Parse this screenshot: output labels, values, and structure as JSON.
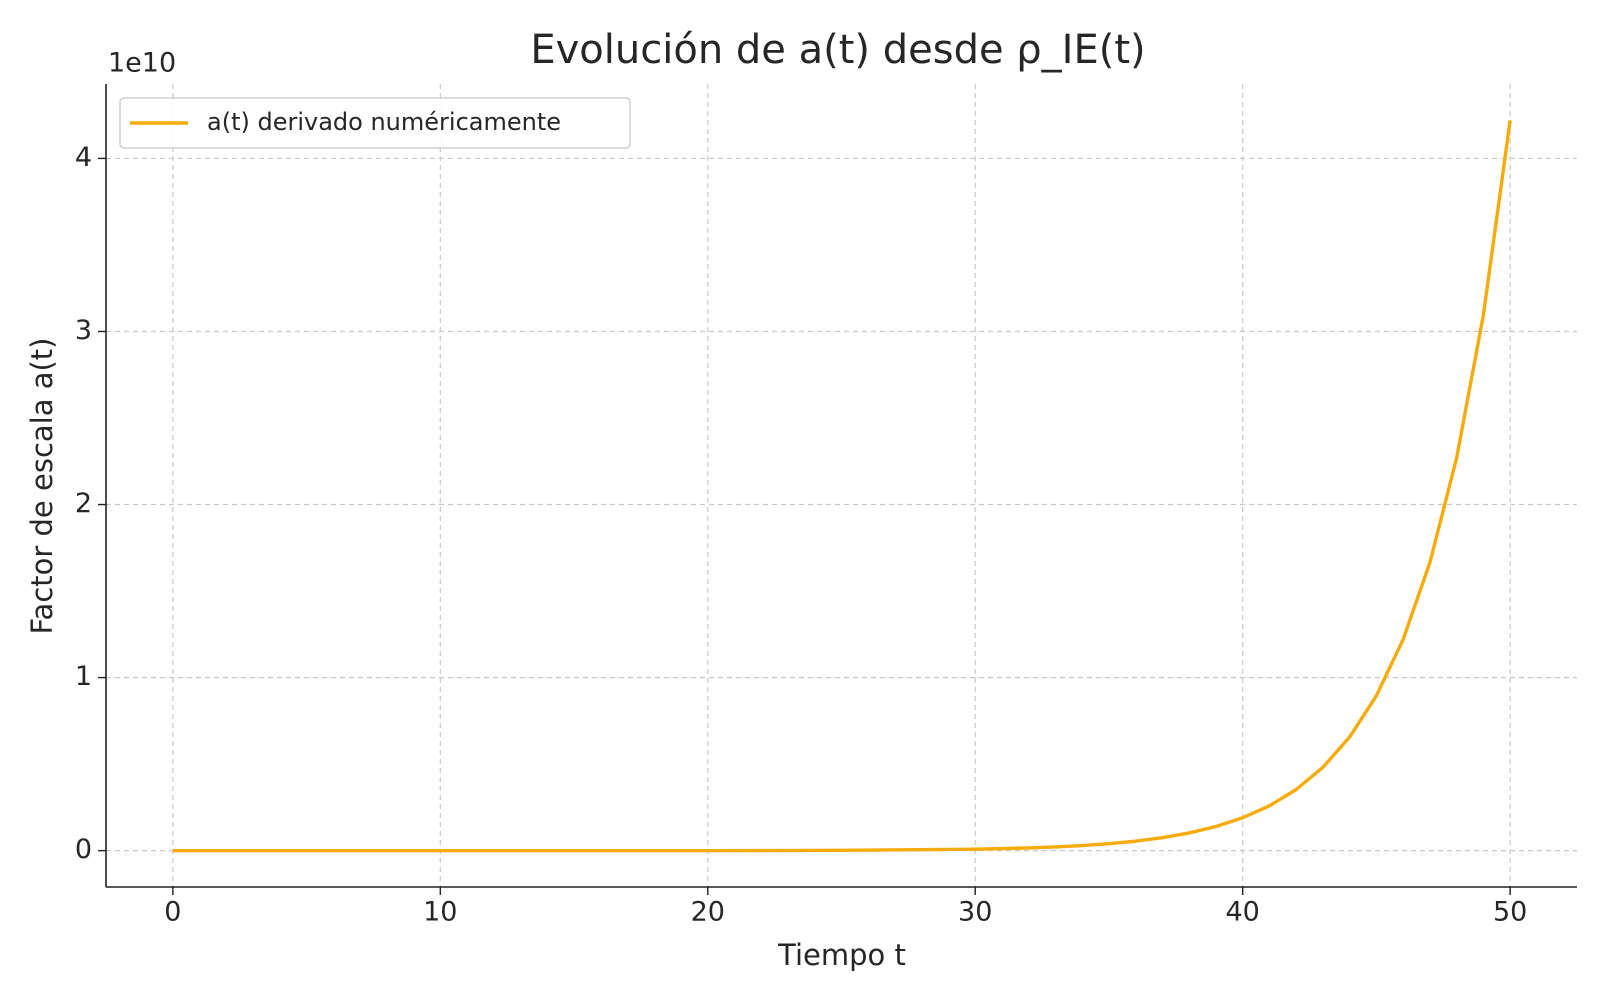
{
  "chart_data": {
    "type": "line",
    "title": "Evolución de a(t) desde ρ_IE(t)",
    "x_label": "Tiempo t",
    "y_label": "Factor de escala a(t)",
    "y_offset_label": "1e10",
    "x": [
      0,
      5,
      10,
      15,
      20,
      25,
      30,
      31,
      32,
      33,
      34,
      35,
      36,
      37,
      38,
      39,
      40,
      41,
      42,
      43,
      44,
      45,
      46,
      47,
      48,
      49,
      50
    ],
    "series": [
      {
        "name": "a(t) derivado numéricamente",
        "color": "#f7ab0a",
        "values": [
          0,
          0,
          0,
          0,
          0,
          0.002,
          0.0086,
          0.0117,
          0.0159,
          0.0217,
          0.0296,
          0.0403,
          0.055,
          0.075,
          0.1023,
          0.1394,
          0.1901,
          0.2592,
          0.3534,
          0.4819,
          0.657,
          0.8957,
          1.221,
          1.665,
          2.27,
          3.095,
          4.22
        ]
      }
    ],
    "xlim": [
      -2.5,
      52.5
    ],
    "xticks": [
      0,
      10,
      20,
      30,
      40,
      50
    ],
    "ylim": [
      -0.21,
      4.43
    ],
    "yticks": [
      0,
      1,
      2,
      3,
      4
    ],
    "grid": true,
    "legend": "upper-left"
  }
}
